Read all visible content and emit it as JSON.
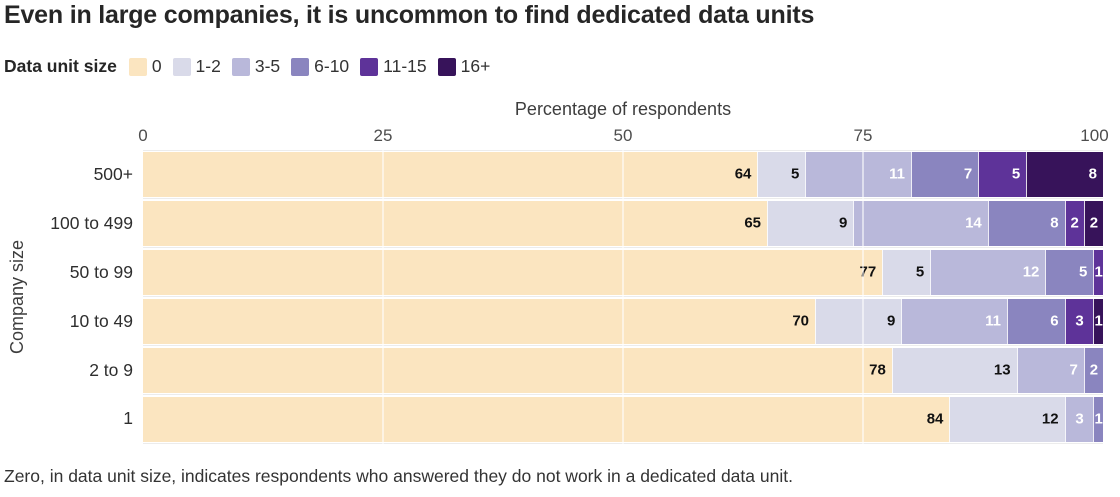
{
  "title": "Even in large companies, it is uncommon to find dedicated data units",
  "legend": {
    "title": "Data unit size",
    "items": [
      "0",
      "1-2",
      "3-5",
      "6-10",
      "11-15",
      "16+"
    ]
  },
  "x_axis": {
    "title": "Percentage of respondents",
    "ticks": [
      "0",
      "25",
      "50",
      "75",
      "100"
    ]
  },
  "y_axis": {
    "title": "Company size"
  },
  "footnote": "Zero, in data unit size, indicates respondents who answered they do not work in a dedicated data unit.",
  "chart_data": {
    "type": "bar",
    "variant": "stacked-horizontal",
    "title": "Even in large companies, it is uncommon to find dedicated data units",
    "xlabel": "Percentage of respondents",
    "ylabel": "Company size",
    "xlim": [
      0,
      100
    ],
    "x_ticks": [
      0,
      25,
      50,
      75,
      100
    ],
    "gridlines": [
      25,
      50,
      75
    ],
    "legend_position": "top",
    "grid": true,
    "categories": [
      "500+",
      "100 to 499",
      "50 to 99",
      "10 to 49",
      "2 to 9",
      "1"
    ],
    "series": [
      {
        "name": "0",
        "color": "#fbe5c0",
        "label_color": "#111111",
        "values": [
          64,
          65,
          77,
          70,
          78,
          84
        ]
      },
      {
        "name": "1-2",
        "color": "#d9dae9",
        "label_color": "#111111",
        "values": [
          5,
          9,
          5,
          9,
          13,
          12
        ]
      },
      {
        "name": "3-5",
        "color": "#b9b8da",
        "label_color": "#ffffff",
        "values": [
          11,
          14,
          12,
          11,
          7,
          3
        ]
      },
      {
        "name": "6-10",
        "color": "#8a85bf",
        "label_color": "#ffffff",
        "values": [
          7,
          8,
          5,
          6,
          2,
          1
        ]
      },
      {
        "name": "11-15",
        "color": "#5e3399",
        "label_color": "#ffffff",
        "values": [
          5,
          2,
          1,
          3,
          0,
          0
        ]
      },
      {
        "name": "16+",
        "color": "#37135a",
        "label_color": "#ffffff",
        "values": [
          8,
          2,
          0,
          1,
          0,
          0
        ]
      }
    ]
  }
}
